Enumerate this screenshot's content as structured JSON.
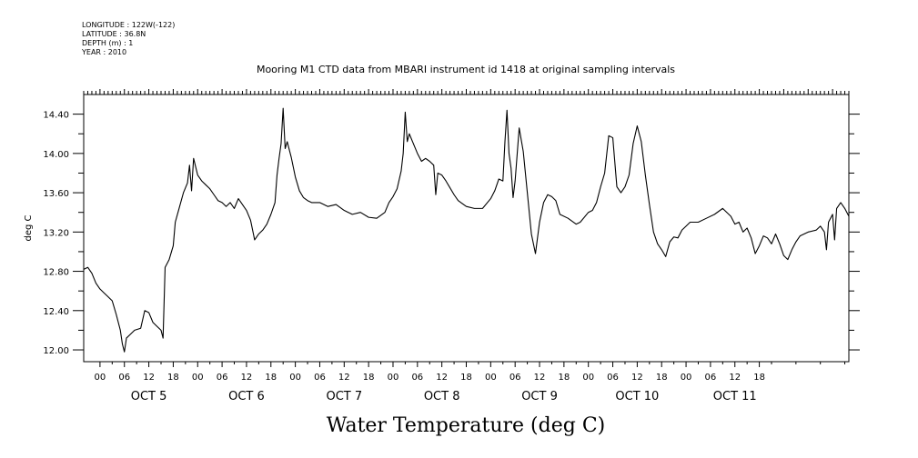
{
  "metadata": {
    "longitude": "LONGITUDE : 122W(-122)",
    "latitude": "LATITUDE : 36.8N",
    "depth": "DEPTH (m) : 1",
    "year": "YEAR : 2010"
  },
  "chart_data": {
    "type": "line",
    "title": "Mooring M1 CTD data from MBARI instrument id 1418 at original sampling intervals",
    "xlabel": "Water Temperature (deg C)",
    "ylabel": "deg C",
    "ylim": [
      11.88,
      14.6
    ],
    "y_ticks": [
      "12.00",
      "12.40",
      "12.80",
      "13.20",
      "13.60",
      "14.00",
      "14.40"
    ],
    "xlim_hours": [
      -4,
      184
    ],
    "x_hour_ticks": [
      "00",
      "06",
      "12",
      "18",
      "00",
      "06",
      "12",
      "18",
      "00",
      "06",
      "12",
      "18",
      "00",
      "06",
      "12",
      "18",
      "00",
      "06",
      "12",
      "18",
      "00",
      "06",
      "12",
      "18",
      "00",
      "06",
      "12",
      "18"
    ],
    "day_labels": [
      "OCT  5",
      "OCT  6",
      "OCT  7",
      "OCT  8",
      "OCT  9",
      "OCT 10",
      "OCT 11"
    ],
    "grid": false,
    "series": [
      {
        "points": [
          [
            -4,
            12.82
          ],
          [
            -3,
            12.84
          ],
          [
            -2,
            12.78
          ],
          [
            -1,
            12.68
          ],
          [
            0,
            12.62
          ],
          [
            1,
            12.58
          ],
          [
            2,
            12.54
          ],
          [
            3,
            12.5
          ],
          [
            4,
            12.36
          ],
          [
            5,
            12.2
          ],
          [
            5.5,
            12.06
          ],
          [
            6,
            11.98
          ],
          [
            6.5,
            12.12
          ],
          [
            7.5,
            12.16
          ],
          [
            8.5,
            12.2
          ],
          [
            10,
            12.22
          ],
          [
            11,
            12.4
          ],
          [
            12,
            12.38
          ],
          [
            13,
            12.28
          ],
          [
            14,
            12.24
          ],
          [
            15,
            12.2
          ],
          [
            15.5,
            12.12
          ],
          [
            16,
            12.84
          ],
          [
            17,
            12.92
          ],
          [
            18,
            13.06
          ],
          [
            18.5,
            13.3
          ],
          [
            19.5,
            13.45
          ],
          [
            20.5,
            13.6
          ],
          [
            21.5,
            13.7
          ],
          [
            22,
            13.88
          ],
          [
            22.5,
            13.62
          ],
          [
            23,
            13.95
          ],
          [
            24,
            13.78
          ],
          [
            25,
            13.72
          ],
          [
            26,
            13.68
          ],
          [
            27,
            13.64
          ],
          [
            28,
            13.58
          ],
          [
            29,
            13.52
          ],
          [
            30,
            13.5
          ],
          [
            31,
            13.46
          ],
          [
            32,
            13.5
          ],
          [
            33,
            13.44
          ],
          [
            34,
            13.54
          ],
          [
            35,
            13.48
          ],
          [
            36,
            13.42
          ],
          [
            37,
            13.32
          ],
          [
            38,
            13.12
          ],
          [
            39,
            13.18
          ],
          [
            40,
            13.22
          ],
          [
            41,
            13.28
          ],
          [
            42,
            13.38
          ],
          [
            43,
            13.5
          ],
          [
            43.5,
            13.78
          ],
          [
            44,
            13.95
          ],
          [
            44.5,
            14.1
          ],
          [
            45,
            14.46
          ],
          [
            45.5,
            14.05
          ],
          [
            46,
            14.12
          ],
          [
            47,
            13.96
          ],
          [
            48,
            13.76
          ],
          [
            49,
            13.62
          ],
          [
            50,
            13.55
          ],
          [
            51,
            13.52
          ],
          [
            52,
            13.5
          ],
          [
            54,
            13.5
          ],
          [
            56,
            13.46
          ],
          [
            58,
            13.48
          ],
          [
            60,
            13.42
          ],
          [
            62,
            13.38
          ],
          [
            64,
            13.4
          ],
          [
            66,
            13.35
          ],
          [
            68,
            13.34
          ],
          [
            70,
            13.4
          ],
          [
            71,
            13.5
          ],
          [
            72,
            13.56
          ],
          [
            73,
            13.64
          ],
          [
            74,
            13.82
          ],
          [
            74.5,
            14.0
          ],
          [
            75,
            14.42
          ],
          [
            75.5,
            14.12
          ],
          [
            76,
            14.2
          ],
          [
            77,
            14.1
          ],
          [
            78,
            14.0
          ],
          [
            79,
            13.92
          ],
          [
            80,
            13.95
          ],
          [
            81,
            13.92
          ],
          [
            82,
            13.88
          ],
          [
            82.5,
            13.58
          ],
          [
            83,
            13.8
          ],
          [
            84,
            13.78
          ],
          [
            85,
            13.72
          ],
          [
            86,
            13.65
          ],
          [
            87,
            13.58
          ],
          [
            88,
            13.52
          ],
          [
            90,
            13.46
          ],
          [
            92,
            13.44
          ],
          [
            94,
            13.44
          ],
          [
            96,
            13.54
          ],
          [
            97,
            13.62
          ],
          [
            98,
            13.74
          ],
          [
            99,
            13.72
          ],
          [
            99.5,
            14.12
          ],
          [
            100,
            14.44
          ],
          [
            100.5,
            14.0
          ],
          [
            101,
            13.85
          ],
          [
            101.5,
            13.55
          ],
          [
            102,
            13.72
          ],
          [
            103,
            14.26
          ],
          [
            104,
            14.02
          ],
          [
            105,
            13.6
          ],
          [
            106,
            13.18
          ],
          [
            107,
            12.98
          ],
          [
            108,
            13.3
          ],
          [
            109,
            13.5
          ],
          [
            110,
            13.58
          ],
          [
            111,
            13.56
          ],
          [
            112,
            13.52
          ],
          [
            113,
            13.38
          ],
          [
            115,
            13.34
          ],
          [
            117,
            13.28
          ],
          [
            118,
            13.3
          ],
          [
            120,
            13.4
          ],
          [
            121,
            13.42
          ],
          [
            122,
            13.5
          ],
          [
            123,
            13.66
          ],
          [
            124,
            13.8
          ],
          [
            125,
            14.18
          ],
          [
            126,
            14.16
          ],
          [
            127,
            13.66
          ],
          [
            128,
            13.6
          ],
          [
            129,
            13.66
          ],
          [
            130,
            13.78
          ],
          [
            131,
            14.1
          ],
          [
            132,
            14.28
          ],
          [
            133,
            14.12
          ],
          [
            134,
            13.78
          ],
          [
            135,
            13.48
          ],
          [
            136,
            13.2
          ],
          [
            137,
            13.08
          ],
          [
            138,
            13.02
          ],
          [
            139,
            12.95
          ],
          [
            140,
            13.1
          ],
          [
            141,
            13.15
          ],
          [
            142,
            13.14
          ],
          [
            143,
            13.22
          ],
          [
            144,
            13.26
          ],
          [
            145,
            13.3
          ],
          [
            147,
            13.3
          ],
          [
            149,
            13.34
          ],
          [
            151,
            13.38
          ],
          [
            153,
            13.44
          ],
          [
            155,
            13.36
          ],
          [
            156,
            13.28
          ],
          [
            157,
            13.3
          ],
          [
            158,
            13.2
          ],
          [
            159,
            13.24
          ],
          [
            160,
            13.14
          ],
          [
            161,
            12.98
          ],
          [
            162,
            13.06
          ],
          [
            163,
            13.16
          ],
          [
            164,
            13.14
          ],
          [
            165,
            13.08
          ],
          [
            166,
            13.18
          ],
          [
            167,
            13.08
          ],
          [
            168,
            12.96
          ],
          [
            169,
            12.92
          ],
          [
            170,
            13.02
          ],
          [
            171,
            13.1
          ],
          [
            172,
            13.16
          ],
          [
            174,
            13.2
          ],
          [
            176,
            13.22
          ],
          [
            177,
            13.26
          ],
          [
            178,
            13.2
          ],
          [
            178.5,
            13.02
          ],
          [
            179,
            13.3
          ],
          [
            180,
            13.38
          ],
          [
            180.5,
            13.12
          ],
          [
            181,
            13.44
          ],
          [
            182,
            13.5
          ],
          [
            183,
            13.44
          ],
          [
            184,
            13.36
          ]
        ]
      }
    ]
  }
}
